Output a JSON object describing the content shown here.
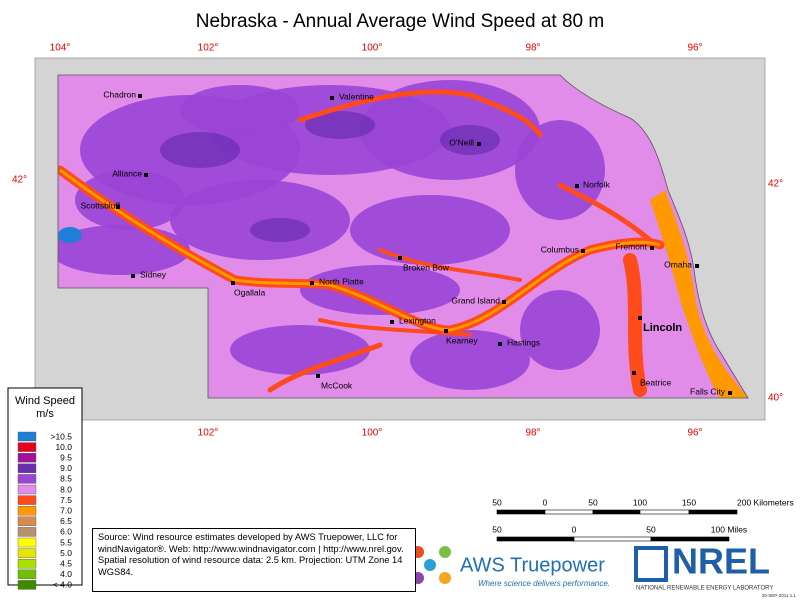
{
  "title": "Nebraska - Annual Average Wind Speed at 80 m",
  "graticule": {
    "top": [
      "104°",
      "102°",
      "100°",
      "98°",
      "96°"
    ],
    "bottom": [
      "102°",
      "100°",
      "98°",
      "96°"
    ],
    "left": [
      "42°"
    ],
    "right": [
      "42°",
      "40°"
    ]
  },
  "cities": [
    "Chadron",
    "Valentine",
    "O'Neill",
    "Alliance",
    "Norfolk",
    "Scottsbluff",
    "Columbus",
    "Fremont",
    "Broken Bow",
    "Omaha",
    "Sidney",
    "Ogallala",
    "North Platte",
    "Grand Island",
    "Lexington",
    "Kearney",
    "Lincoln",
    "Hastings",
    "McCook",
    "Beatrice",
    "Falls City"
  ],
  "legend": {
    "title": "Wind Speed",
    "unit": "m/s",
    "items": [
      {
        "label": ">10.5",
        "color": "#1e7fd9"
      },
      {
        "label": "10.0",
        "color": "#e8001c"
      },
      {
        "label": "9.5",
        "color": "#a0109a"
      },
      {
        "label": "9.0",
        "color": "#6a2db0"
      },
      {
        "label": "8.5",
        "color": "#9a45d6"
      },
      {
        "label": "8.0",
        "color": "#e08ce8"
      },
      {
        "label": "7.5",
        "color": "#ff4a1a"
      },
      {
        "label": "7.0",
        "color": "#ff9900"
      },
      {
        "label": "6.5",
        "color": "#d88a50"
      },
      {
        "label": "6.0",
        "color": "#b79070"
      },
      {
        "label": "5.5",
        "color": "#ffff00"
      },
      {
        "label": "5.0",
        "color": "#e6e600"
      },
      {
        "label": "4.5",
        "color": "#a8e000"
      },
      {
        "label": "4.0",
        "color": "#70c000"
      },
      {
        "label": "< 4.0",
        "color": "#3d8c00"
      }
    ]
  },
  "scale": {
    "km": [
      "50",
      "0",
      "50",
      "100",
      "150",
      "200 Kilometers"
    ],
    "miles": [
      "50",
      "0",
      "50",
      "100 Miles"
    ]
  },
  "source": "Source: Wind resource estimates developed by AWS Truepower, LLC for windNavigator®. Web: http://www.windnavigator.com | http://www.nrel.gov. Spatial resolution of wind resource data: 2.5 km. Projection: UTM Zone 14 WGS84.",
  "logos": {
    "aws": "AWS Truepower",
    "aws_tagline": "Where science delivers performance.",
    "nrel": "NREL",
    "nrel_sub": "NATIONAL RENEWABLE ENERGY LABORATORY",
    "code": "30-SEP-2011 1.1"
  }
}
